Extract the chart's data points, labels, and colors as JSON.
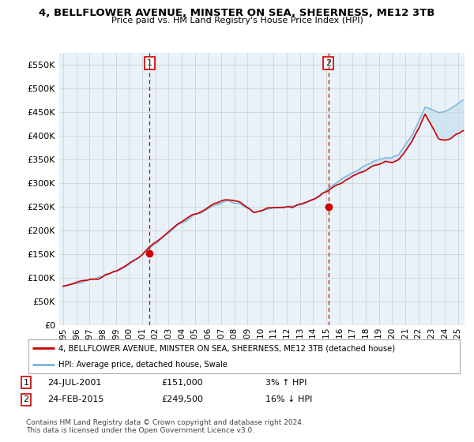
{
  "title1": "4, BELLFLOWER AVENUE, MINSTER ON SEA, SHEERNESS, ME12 3TB",
  "title2": "Price paid vs. HM Land Registry's House Price Index (HPI)",
  "ylabel_ticks": [
    0,
    50000,
    100000,
    150000,
    200000,
    250000,
    300000,
    350000,
    400000,
    450000,
    500000,
    550000
  ],
  "ylim": [
    0,
    575000
  ],
  "xlim_start": 1994.7,
  "xlim_end": 2025.5,
  "sale1_x": 2001.56,
  "sale1_y": 151000,
  "sale1_label": "1",
  "sale1_date": "24-JUL-2001",
  "sale1_price": "£151,000",
  "sale1_hpi": "3% ↑ HPI",
  "sale2_x": 2015.15,
  "sale2_y": 249500,
  "sale2_label": "2",
  "sale2_date": "24-FEB-2015",
  "sale2_price": "£249,500",
  "sale2_hpi": "16% ↓ HPI",
  "legend_line1": "4, BELLFLOWER AVENUE, MINSTER ON SEA, SHEERNESS, ME12 3TB (detached house)",
  "legend_line2": "HPI: Average price, detached house, Swale",
  "footnote": "Contains HM Land Registry data © Crown copyright and database right 2024.\nThis data is licensed under the Open Government Licence v3.0.",
  "hpi_color": "#7ab4d8",
  "hpi_fill_color": "#c8dff0",
  "price_color": "#cc0000",
  "vline_color": "#cc0000",
  "background_color": "#ffffff",
  "grid_color": "#cccccc"
}
